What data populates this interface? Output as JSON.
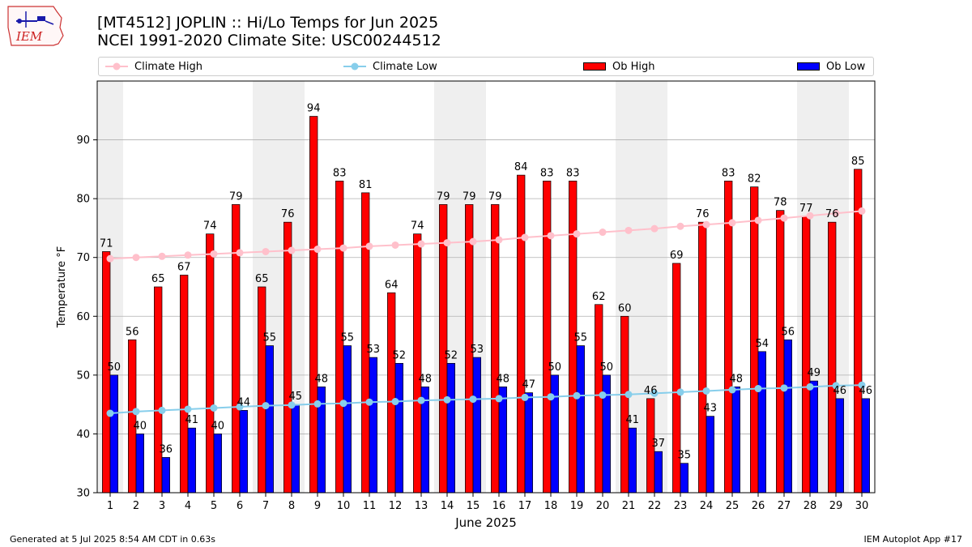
{
  "logo": {
    "text": "IEM"
  },
  "title_line1": "[MT4512] JOPLIN :: Hi/Lo Temps for Jun 2025",
  "title_line2": "NCEI 1991-2020 Climate Site: USC00244512",
  "footer_left": "Generated at 5 Jul 2025 8:54 AM CDT in 0.63s",
  "footer_right": "IEM Autoplot App #17",
  "colors": {
    "ob_high": "#ff0000",
    "ob_low": "#0000ff",
    "climate_high": "#ffc0cb",
    "climate_low": "#87ceeb",
    "weekend_shade": "#efefef",
    "grid": "#b0b0b0"
  },
  "chart_data": {
    "type": "bar",
    "xlabel": "June 2025",
    "ylabel": "Temperature °F",
    "ylim": [
      30,
      100
    ],
    "yticks": [
      30,
      40,
      50,
      60,
      70,
      80,
      90
    ],
    "legend_position": "top",
    "grid": "horizontal",
    "categories": [
      "1",
      "2",
      "3",
      "4",
      "5",
      "6",
      "7",
      "8",
      "9",
      "10",
      "11",
      "12",
      "13",
      "14",
      "15",
      "16",
      "17",
      "18",
      "19",
      "20",
      "21",
      "22",
      "23",
      "24",
      "25",
      "26",
      "27",
      "28",
      "29",
      "30"
    ],
    "shaded_days": [
      1,
      7,
      8,
      14,
      15,
      21,
      22,
      28,
      29
    ],
    "series": [
      {
        "name": "Climate High",
        "kind": "line",
        "values": [
          69.8,
          70.0,
          70.2,
          70.4,
          70.6,
          70.8,
          71.0,
          71.2,
          71.4,
          71.6,
          71.9,
          72.1,
          72.3,
          72.5,
          72.7,
          73.0,
          73.4,
          73.7,
          74.0,
          74.3,
          74.6,
          74.9,
          75.3,
          75.6,
          75.9,
          76.3,
          76.7,
          77.1,
          77.5,
          77.9
        ]
      },
      {
        "name": "Climate Low",
        "kind": "line",
        "values": [
          43.5,
          43.8,
          44.0,
          44.2,
          44.4,
          44.6,
          44.8,
          44.9,
          45.1,
          45.2,
          45.4,
          45.5,
          45.7,
          45.8,
          45.9,
          46.0,
          46.2,
          46.3,
          46.5,
          46.6,
          46.7,
          46.9,
          47.1,
          47.3,
          47.5,
          47.7,
          47.8,
          48.0,
          48.2,
          48.3
        ]
      },
      {
        "name": "Ob High",
        "kind": "bar",
        "values": [
          71,
          56,
          65,
          67,
          74,
          79,
          65,
          76,
          94,
          83,
          81,
          64,
          74,
          79,
          79,
          79,
          84,
          83,
          83,
          62,
          60,
          46,
          69,
          76,
          83,
          82,
          78,
          77,
          76,
          85
        ]
      },
      {
        "name": "Ob Low",
        "kind": "bar",
        "values": [
          50,
          40,
          36,
          41,
          40,
          44,
          55,
          45,
          48,
          55,
          53,
          52,
          48,
          52,
          53,
          48,
          47,
          50,
          55,
          50,
          41,
          37,
          35,
          43,
          48,
          54,
          56,
          49,
          46,
          46
        ]
      }
    ]
  }
}
